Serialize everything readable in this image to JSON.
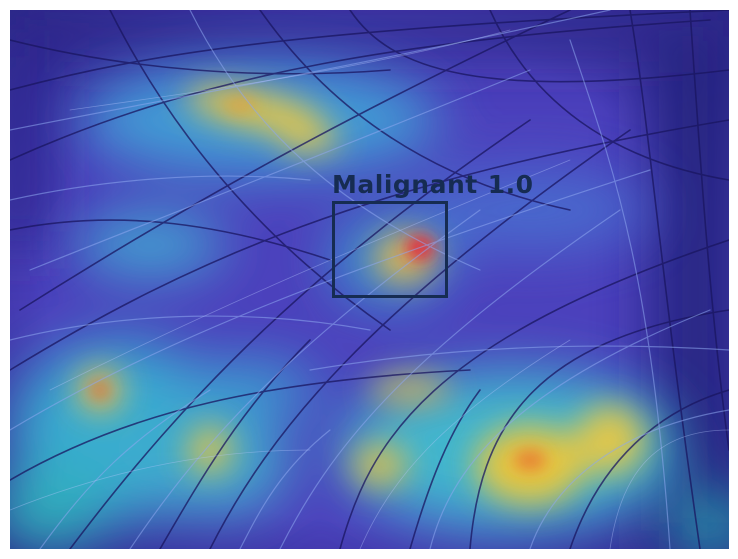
{
  "detection": {
    "class_label": "Malignant",
    "score": "1.0"
  },
  "colors": {
    "box": "#162c52",
    "heatmap_low": "#3b2fa8",
    "heatmap_mid": "#35c8d8",
    "heatmap_high": "#f6d23a",
    "heatmap_peak": "#e8283a"
  },
  "image": {
    "subject": "dermoscopy-heatmap-overlay"
  }
}
